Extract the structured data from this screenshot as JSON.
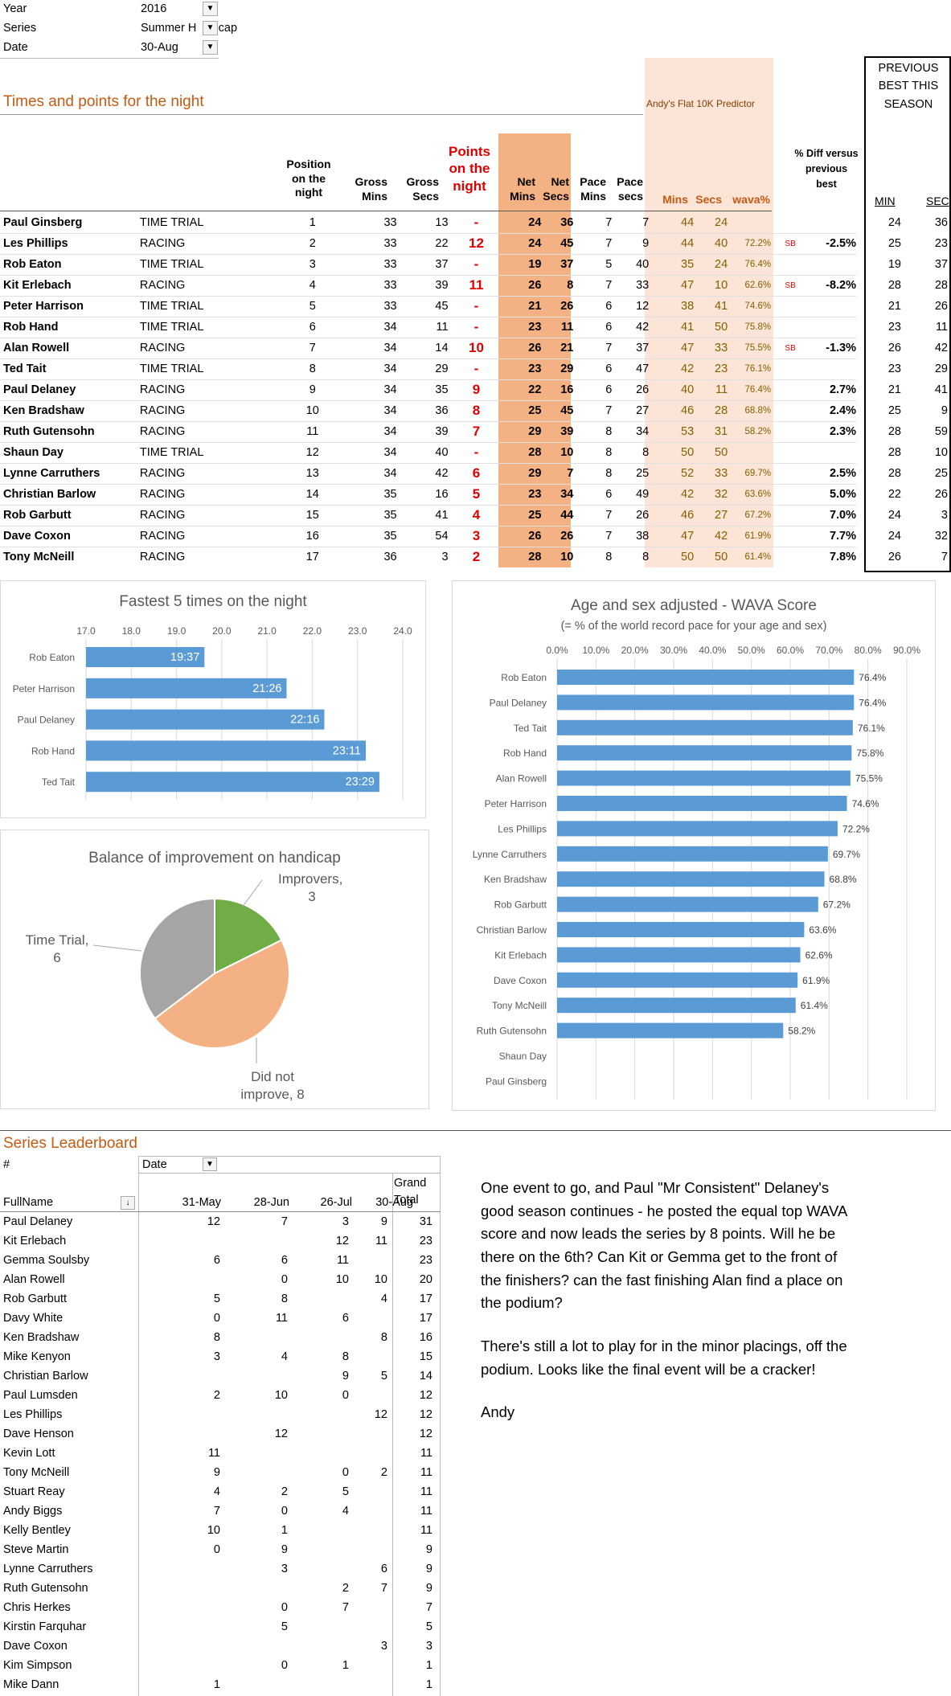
{
  "filters": [
    {
      "key": "Year",
      "value": "2016"
    },
    {
      "key": "Series",
      "value": "Summer H    dicap"
    },
    {
      "key": "Date",
      "value": "30-Aug"
    }
  ],
  "filter_icon": "filter-dropdown-icon",
  "section_title": "Times and points for the night",
  "predictor_label": "Andy's Flat 10K Predictor",
  "previous_best_title": "PREVIOUS BEST THIS SEASON",
  "headers": {
    "position": "Position on the night",
    "gross_mins": "Gross Mins",
    "gross_secs": "Gross Secs",
    "points": "Points on the night",
    "net_mins": "Net Mins",
    "net_secs": "Net Secs",
    "pace_mins": "Pace Mins",
    "pace_secs": "Pace secs",
    "pred_mins": "Mins",
    "pred_secs": "Secs",
    "wava": "wava%",
    "pct_diff": "% Diff versus previous best",
    "min": "MIN",
    "sec": "SEC"
  },
  "results": [
    {
      "name": "Paul Ginsberg",
      "type": "TIME TRIAL",
      "pos": "1",
      "gm": "33",
      "gs": "13",
      "pts": "-",
      "nm": "24",
      "ns": "36",
      "pm": "7",
      "ps": "7",
      "pdm": "44",
      "pds": "24",
      "wava": "",
      "sb": "",
      "diff": "",
      "bm": "24",
      "bs": "36"
    },
    {
      "name": "Les Phillips",
      "type": "RACING",
      "pos": "2",
      "gm": "33",
      "gs": "22",
      "pts": "12",
      "nm": "24",
      "ns": "45",
      "pm": "7",
      "ps": "9",
      "pdm": "44",
      "pds": "40",
      "wava": "72.2%",
      "sb": "SB",
      "diff": "-2.5%",
      "bm": "25",
      "bs": "23"
    },
    {
      "name": "Rob Eaton",
      "type": "TIME TRIAL",
      "pos": "3",
      "gm": "33",
      "gs": "37",
      "pts": "-",
      "nm": "19",
      "ns": "37",
      "pm": "5",
      "ps": "40",
      "pdm": "35",
      "pds": "24",
      "wava": "76.4%",
      "sb": "",
      "diff": "",
      "bm": "19",
      "bs": "37"
    },
    {
      "name": "Kit Erlebach",
      "type": "RACING",
      "pos": "4",
      "gm": "33",
      "gs": "39",
      "pts": "11",
      "nm": "26",
      "ns": "8",
      "pm": "7",
      "ps": "33",
      "pdm": "47",
      "pds": "10",
      "wava": "62.6%",
      "sb": "SB",
      "diff": "-8.2%",
      "bm": "28",
      "bs": "28"
    },
    {
      "name": "Peter Harrison",
      "type": "TIME TRIAL",
      "pos": "5",
      "gm": "33",
      "gs": "45",
      "pts": "-",
      "nm": "21",
      "ns": "26",
      "pm": "6",
      "ps": "12",
      "pdm": "38",
      "pds": "41",
      "wava": "74.6%",
      "sb": "",
      "diff": "",
      "bm": "21",
      "bs": "26"
    },
    {
      "name": "Rob Hand",
      "type": "TIME TRIAL",
      "pos": "6",
      "gm": "34",
      "gs": "11",
      "pts": "-",
      "nm": "23",
      "ns": "11",
      "pm": "6",
      "ps": "42",
      "pdm": "41",
      "pds": "50",
      "wava": "75.8%",
      "sb": "",
      "diff": "",
      "bm": "23",
      "bs": "11"
    },
    {
      "name": "Alan Rowell",
      "type": "RACING",
      "pos": "7",
      "gm": "34",
      "gs": "14",
      "pts": "10",
      "nm": "26",
      "ns": "21",
      "pm": "7",
      "ps": "37",
      "pdm": "47",
      "pds": "33",
      "wava": "75.5%",
      "sb": "SB",
      "diff": "-1.3%",
      "bm": "26",
      "bs": "42"
    },
    {
      "name": "Ted Tait",
      "type": "TIME TRIAL",
      "pos": "8",
      "gm": "34",
      "gs": "29",
      "pts": "-",
      "nm": "23",
      "ns": "29",
      "pm": "6",
      "ps": "47",
      "pdm": "42",
      "pds": "23",
      "wava": "76.1%",
      "sb": "",
      "diff": "",
      "bm": "23",
      "bs": "29"
    },
    {
      "name": "Paul Delaney",
      "type": "RACING",
      "pos": "9",
      "gm": "34",
      "gs": "35",
      "pts": "9",
      "nm": "22",
      "ns": "16",
      "pm": "6",
      "ps": "26",
      "pdm": "40",
      "pds": "11",
      "wava": "76.4%",
      "sb": "",
      "diff": "2.7%",
      "bm": "21",
      "bs": "41"
    },
    {
      "name": "Ken Bradshaw",
      "type": "RACING",
      "pos": "10",
      "gm": "34",
      "gs": "36",
      "pts": "8",
      "nm": "25",
      "ns": "45",
      "pm": "7",
      "ps": "27",
      "pdm": "46",
      "pds": "28",
      "wava": "68.8%",
      "sb": "",
      "diff": "2.4%",
      "bm": "25",
      "bs": "9"
    },
    {
      "name": "Ruth Gutensohn",
      "type": "RACING",
      "pos": "11",
      "gm": "34",
      "gs": "39",
      "pts": "7",
      "nm": "29",
      "ns": "39",
      "pm": "8",
      "ps": "34",
      "pdm": "53",
      "pds": "31",
      "wava": "58.2%",
      "sb": "",
      "diff": "2.3%",
      "bm": "28",
      "bs": "59"
    },
    {
      "name": "Shaun Day",
      "type": "TIME TRIAL",
      "pos": "12",
      "gm": "34",
      "gs": "40",
      "pts": "-",
      "nm": "28",
      "ns": "10",
      "pm": "8",
      "ps": "8",
      "pdm": "50",
      "pds": "50",
      "wava": "",
      "sb": "",
      "diff": "",
      "bm": "28",
      "bs": "10"
    },
    {
      "name": "Lynne Carruthers",
      "type": "RACING",
      "pos": "13",
      "gm": "34",
      "gs": "42",
      "pts": "6",
      "nm": "29",
      "ns": "7",
      "pm": "8",
      "ps": "25",
      "pdm": "52",
      "pds": "33",
      "wava": "69.7%",
      "sb": "",
      "diff": "2.5%",
      "bm": "28",
      "bs": "25"
    },
    {
      "name": "Christian Barlow",
      "type": "RACING",
      "pos": "14",
      "gm": "35",
      "gs": "16",
      "pts": "5",
      "nm": "23",
      "ns": "34",
      "pm": "6",
      "ps": "49",
      "pdm": "42",
      "pds": "32",
      "wava": "63.6%",
      "sb": "",
      "diff": "5.0%",
      "bm": "22",
      "bs": "26"
    },
    {
      "name": "Rob Garbutt",
      "type": "RACING",
      "pos": "15",
      "gm": "35",
      "gs": "41",
      "pts": "4",
      "nm": "25",
      "ns": "44",
      "pm": "7",
      "ps": "26",
      "pdm": "46",
      "pds": "27",
      "wava": "67.2%",
      "sb": "",
      "diff": "7.0%",
      "bm": "24",
      "bs": "3"
    },
    {
      "name": "Dave Coxon",
      "type": "RACING",
      "pos": "16",
      "gm": "35",
      "gs": "54",
      "pts": "3",
      "nm": "26",
      "ns": "26",
      "pm": "7",
      "ps": "38",
      "pdm": "47",
      "pds": "42",
      "wava": "61.9%",
      "sb": "",
      "diff": "7.7%",
      "bm": "24",
      "bs": "32"
    },
    {
      "name": "Tony McNeill",
      "type": "RACING",
      "pos": "17",
      "gm": "36",
      "gs": "3",
      "pts": "2",
      "nm": "28",
      "ns": "10",
      "pm": "8",
      "ps": "8",
      "pdm": "50",
      "pds": "50",
      "wava": "61.4%",
      "sb": "",
      "diff": "7.8%",
      "bm": "26",
      "bs": "7"
    }
  ],
  "chart_data": [
    {
      "type": "bar",
      "title": "Fastest 5 times on the night",
      "orientation": "horizontal",
      "categories": [
        "Rob Eaton",
        "Peter Harrison",
        "Paul Delaney",
        "Rob Hand",
        "Ted Tait"
      ],
      "values": [
        19.617,
        21.433,
        22.267,
        23.183,
        23.483
      ],
      "data_labels": [
        "19:37",
        "21:26",
        "22:16",
        "23:11",
        "23:29"
      ],
      "xlim": [
        17.0,
        24.0
      ],
      "xticks": [
        "17.0",
        "18.0",
        "19.0",
        "20.0",
        "21.0",
        "22.0",
        "23.0",
        "24.0"
      ]
    },
    {
      "type": "bar",
      "title": "Age and sex adjusted - WAVA Score",
      "subtitle": "(= % of the world record pace for your age and sex)",
      "orientation": "horizontal",
      "categories": [
        "Rob Eaton",
        "Paul Delaney",
        "Ted Tait",
        "Rob Hand",
        "Alan Rowell",
        "Peter Harrison",
        "Les Phillips",
        "Lynne Carruthers",
        "Ken Bradshaw",
        "Rob Garbutt",
        "Christian Barlow",
        "Kit Erlebach",
        "Dave Coxon",
        "Tony McNeill",
        "Ruth Gutensohn",
        "Shaun Day",
        "Paul Ginsberg"
      ],
      "values": [
        76.4,
        76.4,
        76.1,
        75.8,
        75.5,
        74.6,
        72.2,
        69.7,
        68.8,
        67.2,
        63.6,
        62.6,
        61.9,
        61.4,
        58.2,
        null,
        null
      ],
      "data_labels": [
        "76.4%",
        "76.4%",
        "76.1%",
        "75.8%",
        "75.5%",
        "74.6%",
        "72.2%",
        "69.7%",
        "68.8%",
        "67.2%",
        "63.6%",
        "62.6%",
        "61.9%",
        "61.4%",
        "58.2%",
        "",
        ""
      ],
      "xlim": [
        0,
        90
      ],
      "xticks": [
        "0.0%",
        "10.0%",
        "20.0%",
        "30.0%",
        "40.0%",
        "50.0%",
        "60.0%",
        "70.0%",
        "80.0%",
        "90.0%"
      ]
    },
    {
      "type": "pie",
      "title": "Balance of improvement  on handicap",
      "slices": [
        {
          "label": "Improvers,",
          "value": 3,
          "color": "#70ad47"
        },
        {
          "label": "Did not improve,",
          "value": 8,
          "color": "#f4b183"
        },
        {
          "label": "Time Trial,",
          "value": 6,
          "color": "#a5a5a5"
        }
      ]
    }
  ],
  "leaderboard": {
    "title": "Series Leaderboard",
    "hash": "#",
    "date_label": "Date",
    "fullname_label": "FullName",
    "grand_total_label": "Grand Total",
    "dates": [
      "31-May",
      "28-Jun",
      "26-Jul",
      "30-Aug"
    ],
    "rows": [
      {
        "name": "Paul Delaney",
        "v": [
          "12",
          "7",
          "3",
          "9"
        ],
        "t": "31"
      },
      {
        "name": "Kit Erlebach",
        "v": [
          "",
          "",
          "12",
          "11"
        ],
        "t": "23"
      },
      {
        "name": "Gemma Soulsby",
        "v": [
          "6",
          "6",
          "11",
          ""
        ],
        "t": "23"
      },
      {
        "name": "Alan Rowell",
        "v": [
          "",
          "0",
          "10",
          "10"
        ],
        "t": "20"
      },
      {
        "name": "Rob Garbutt",
        "v": [
          "5",
          "8",
          "",
          "4"
        ],
        "t": "17"
      },
      {
        "name": "Davy White",
        "v": [
          "0",
          "11",
          "6",
          ""
        ],
        "t": "17"
      },
      {
        "name": "Ken Bradshaw",
        "v": [
          "8",
          "",
          "",
          "8"
        ],
        "t": "16"
      },
      {
        "name": "Mike Kenyon",
        "v": [
          "3",
          "4",
          "8",
          ""
        ],
        "t": "15"
      },
      {
        "name": "Christian Barlow",
        "v": [
          "",
          "",
          "9",
          "5"
        ],
        "t": "14"
      },
      {
        "name": "Paul Lumsden",
        "v": [
          "2",
          "10",
          "0",
          ""
        ],
        "t": "12"
      },
      {
        "name": "Les Phillips",
        "v": [
          "",
          "",
          "",
          "12"
        ],
        "t": "12"
      },
      {
        "name": "Dave Henson",
        "v": [
          "",
          "12",
          "",
          ""
        ],
        "t": "12"
      },
      {
        "name": "Kevin Lott",
        "v": [
          "11",
          "",
          "",
          ""
        ],
        "t": "11"
      },
      {
        "name": "Tony McNeill",
        "v": [
          "9",
          "",
          "0",
          "2"
        ],
        "t": "11"
      },
      {
        "name": "Stuart Reay",
        "v": [
          "4",
          "2",
          "5",
          ""
        ],
        "t": "11"
      },
      {
        "name": "Andy Biggs",
        "v": [
          "7",
          "0",
          "4",
          ""
        ],
        "t": "11"
      },
      {
        "name": "Kelly Bentley",
        "v": [
          "10",
          "1",
          "",
          ""
        ],
        "t": "11"
      },
      {
        "name": "Steve Martin",
        "v": [
          "0",
          "9",
          "",
          ""
        ],
        "t": "9"
      },
      {
        "name": "Lynne Carruthers",
        "v": [
          "",
          "3",
          "",
          "6"
        ],
        "t": "9"
      },
      {
        "name": "Ruth Gutensohn",
        "v": [
          "",
          "",
          "2",
          "7"
        ],
        "t": "9"
      },
      {
        "name": "Chris Herkes",
        "v": [
          "",
          "0",
          "7",
          ""
        ],
        "t": "7"
      },
      {
        "name": "Kirstin Farquhar",
        "v": [
          "",
          "5",
          "",
          ""
        ],
        "t": "5"
      },
      {
        "name": "Dave Coxon",
        "v": [
          "",
          "",
          "",
          "3"
        ],
        "t": "3"
      },
      {
        "name": "Kim Simpson",
        "v": [
          "",
          "0",
          "1",
          ""
        ],
        "t": "1"
      },
      {
        "name": "Mike Dann",
        "v": [
          "1",
          "",
          "",
          ""
        ],
        "t": "1"
      }
    ]
  },
  "commentary": [
    "One event to go, and Paul \"Mr Consistent\" Delaney's good season continues - he posted the equal top WAVA score and now leads the series by 8 points.  Will he be there on the 6th? Can Kit or Gemma get to the front of the finishers? can the fast finishing Alan find a place on the podium?",
    "There's still a lot to play for in the minor placings, off the podium.  Looks like the final event will be a cracker!",
    "Andy"
  ],
  "colors": {
    "bar": "#5b9bd5",
    "accent": "#c55a11",
    "points_red": "#e00000",
    "net_shade": "#f4b183",
    "pred_shade": "#fce4d6"
  }
}
